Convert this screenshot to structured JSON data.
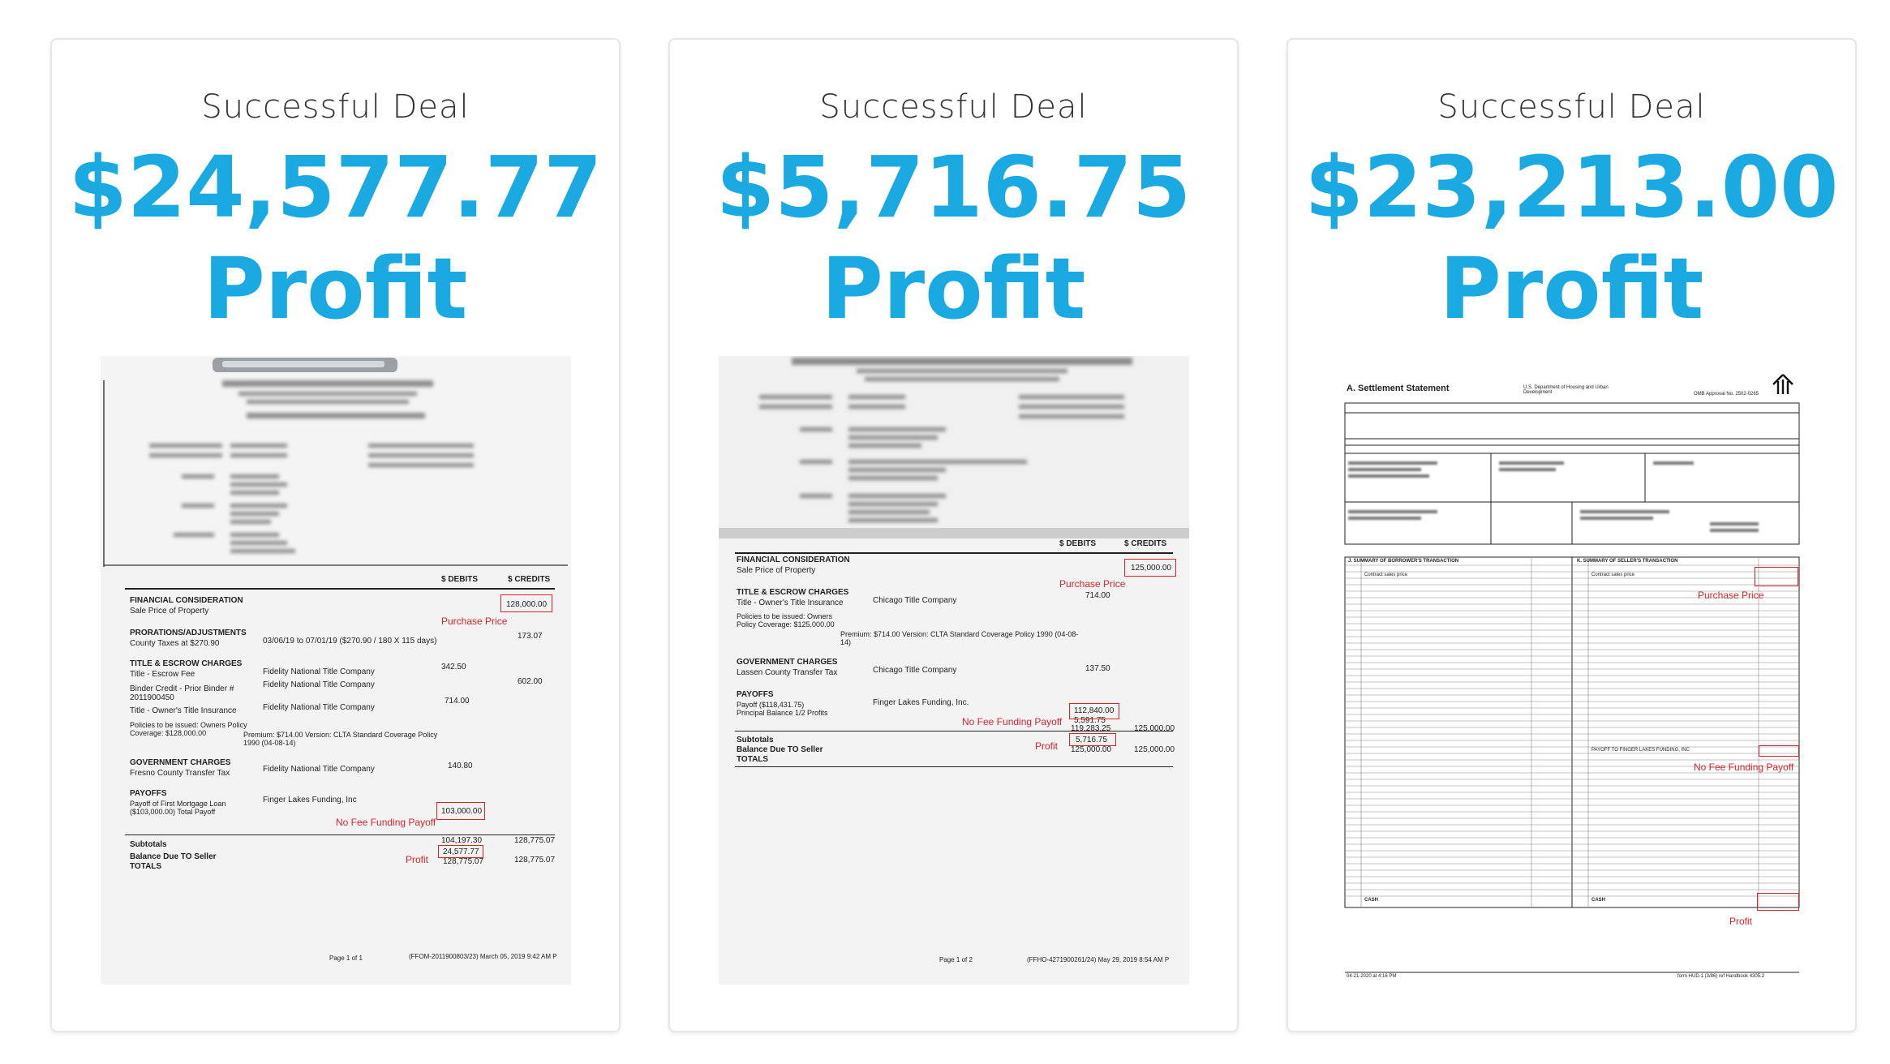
{
  "cards": [
    {
      "kicker": "Successful Deal",
      "amount": "$24,577.77",
      "profit": "Profit",
      "doc": {
        "col_debits": "$ DEBITS",
        "col_credits": "$ CREDITS",
        "sections": [
          {
            "title": "FINANCIAL CONSIDERATION",
            "line": "Sale Price of Property",
            "credit": "128,000.00"
          },
          {
            "title": "PRORATIONS/ADJUSTMENTS",
            "line": "County Taxes at $270.90",
            "detail": "03/06/19 to 07/01/19 ($270.90 / 180 X 115 days)",
            "credit": "173.07"
          },
          {
            "title": "TITLE & ESCROW CHARGES",
            "line": "Title - Escrow Fee",
            "detail": "Fidelity National Title Company",
            "debit": "342.50",
            "credit": "602.00"
          },
          {
            "title": "",
            "line": "Binder Credit - Prior Binder # 2011900450",
            "detail": "Fidelity National Title Company"
          },
          {
            "title": "",
            "line": "Title - Owner's Title Insurance",
            "detail": "Fidelity National Title Company",
            "debit": "714.00"
          },
          {
            "title": "",
            "line": "Policies to be issued: Owners Policy Coverage: $128,000.00",
            "detail": "Premium: $714.00   Version: CLTA Standard Coverage Policy 1990 (04-08-14)"
          },
          {
            "title": "GOVERNMENT CHARGES",
            "line": "Fresno County Transfer Tax",
            "detail": "Fidelity National Title Company",
            "debit": "140.80"
          },
          {
            "title": "PAYOFFS",
            "line": "Payoff of First Mortgage Loan ($103,000.00) Total Payoff",
            "detail": "Finger Lakes Funding, Inc",
            "debit": "103,000.00"
          }
        ],
        "subtotals": {
          "label": "Subtotals",
          "debit": "104,197.30",
          "credit": "128,775.07"
        },
        "balance": {
          "label": "Balance Due TO Seller",
          "debit": "24,577.77"
        },
        "totals": {
          "label": "TOTALS",
          "debit": "128,775.07",
          "credit": "128,775.07"
        },
        "annotations": {
          "purchase": "Purchase Price",
          "payoff": "No Fee Funding Payoff",
          "profit": "Profit"
        },
        "footer_left": "Page 1 of 1",
        "footer_right": "(FFOM-2011900803/23) March 05, 2019  9:42 AM P"
      }
    },
    {
      "kicker": "Successful Deal",
      "amount": "$5,716.75",
      "profit": "Profit",
      "doc": {
        "col_debits": "$ DEBITS",
        "col_credits": "$ CREDITS",
        "sections": [
          {
            "title": "FINANCIAL CONSIDERATION",
            "line": "Sale Price of Property",
            "credit": "125,000.00"
          },
          {
            "title": "TITLE & ESCROW CHARGES",
            "line": "Title - Owner's Title Insurance",
            "detail": "Chicago Title Company",
            "debit": "714.00"
          },
          {
            "title": "",
            "line": "Policies to be issued: Owners Policy Coverage: $125,000.00",
            "detail": "Premium: $714.00   Version: CLTA Standard Coverage Policy 1990 (04-08-14)"
          },
          {
            "title": "GOVERNMENT CHARGES",
            "line": "Lassen County Transfer Tax",
            "detail": "Chicago Title Company",
            "debit": "137.50"
          },
          {
            "title": "PAYOFFS",
            "line": "Payoff ($118,431.75) Principal Balance 1/2 Profits",
            "detail": "Finger Lakes Funding, Inc.",
            "debit": "112,840.00"
          }
        ],
        "payoff_second": "5,591.75",
        "subtotals": {
          "label": "Subtotals",
          "debit": "119,283.25",
          "credit": "125,000.00"
        },
        "balance": {
          "label": "Balance Due TO Seller",
          "debit": "5,716.75"
        },
        "totals": {
          "label": "TOTALS",
          "debit": "125,000.00",
          "credit": "125,000.00"
        },
        "annotations": {
          "purchase": "Purchase Price",
          "payoff": "No Fee Funding Payoff",
          "profit": "Profit"
        },
        "footer_left": "Page 1 of 2",
        "footer_right": "(FFHO-4271900261/24) May 29, 2019  8:54 AM P"
      }
    },
    {
      "kicker": "Successful Deal",
      "amount": "$23,213.00",
      "profit": "Profit",
      "doc": {
        "title": "A. Settlement Statement",
        "agency": "U.S. Department of Housing and Urban Development",
        "omb": "OMB Approval No. 2502-0265",
        "section_j": "J. SUMMARY OF BORROWER'S TRANSACTION",
        "section_k": "K. SUMMARY OF SELLER'S TRANSACTION",
        "row_contract": "Contract sales price",
        "row_payoff": "PAYOFF TO FINGER LAKES FUNDING, INC",
        "row_cash": "CASH",
        "annotations": {
          "purchase": "Purchase Price",
          "payoff": "No Fee Funding Payoff",
          "profit": "Profit"
        },
        "footer_left": "04-21-2020 at 4:16 PM",
        "footer_right": "form HUD-1 (3/86) ref Handbook 4305.2"
      }
    }
  ]
}
